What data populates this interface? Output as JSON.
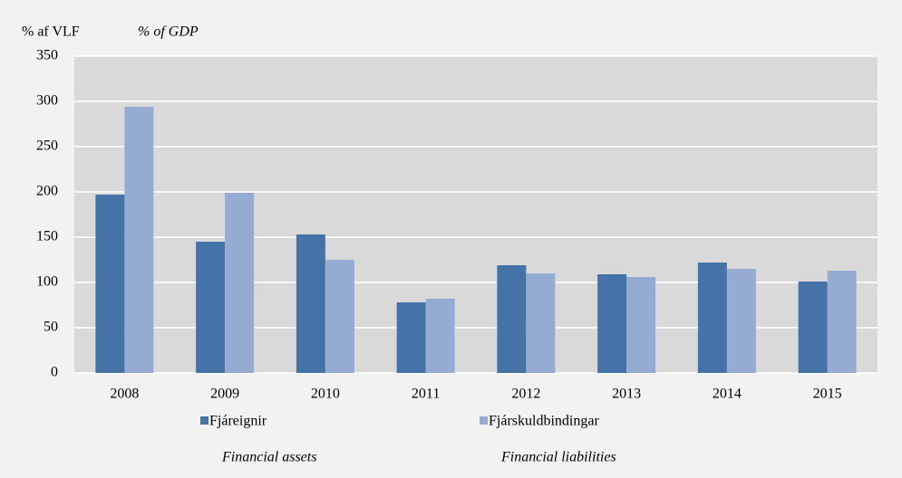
{
  "chart_data": {
    "type": "bar",
    "ylabel": "% af VLF",
    "ylabel_en": "% of GDP",
    "categories": [
      "2008",
      "2009",
      "2010",
      "2011",
      "2012",
      "2013",
      "2014",
      "2015"
    ],
    "series": [
      {
        "name": "Fjáreignir",
        "name_en": "Financial assets",
        "color": "#4572a7",
        "values": [
          197,
          145,
          153,
          78,
          119,
          109,
          122,
          101
        ]
      },
      {
        "name": "Fjárskuldbindingar",
        "name_en": "Financial  liabilities",
        "color": "#95abd2",
        "values": [
          294,
          199,
          125,
          82,
          110,
          106,
          115,
          113
        ]
      }
    ],
    "ylim": [
      0,
      350
    ],
    "yticks": [
      0,
      50,
      100,
      150,
      200,
      250,
      300,
      350
    ],
    "grid": true
  }
}
